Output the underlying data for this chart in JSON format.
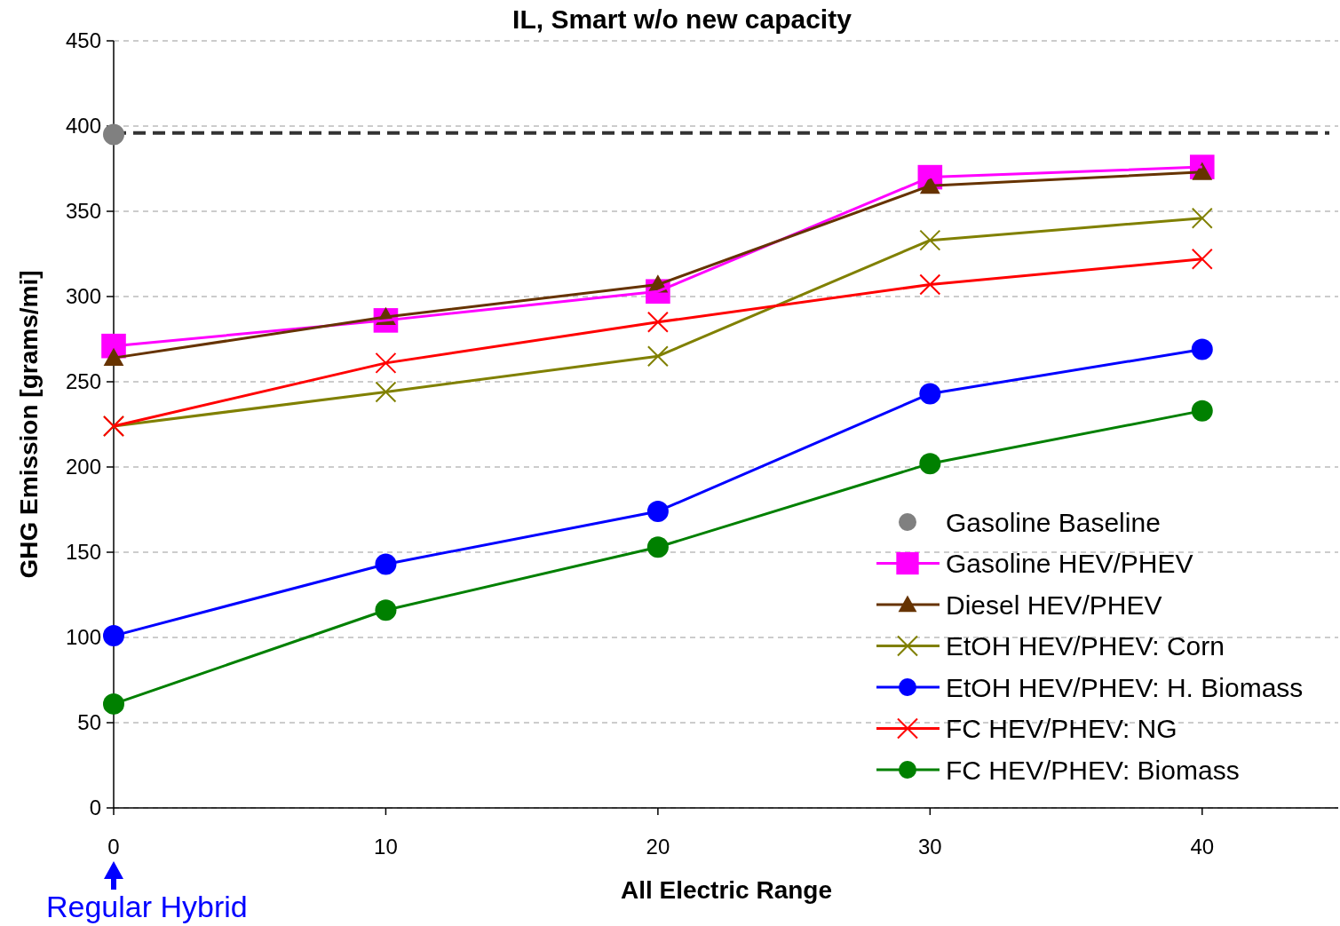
{
  "chart_data": {
    "type": "line",
    "title": "IL, Smart w/o new capacity",
    "xlabel": "All Electric Range",
    "ylabel": "GHG Emission [grams/mi]",
    "xlim": [
      0,
      45
    ],
    "xticks": [
      0,
      10,
      20,
      30,
      40
    ],
    "ylim": [
      0,
      450
    ],
    "yticks": [
      0,
      50,
      100,
      150,
      200,
      250,
      300,
      350,
      400,
      450
    ],
    "grid": "y",
    "legend": "bottom right",
    "annotations": [
      "Regular Hybrid"
    ],
    "ref_lines": [
      {
        "axis": "y",
        "value": 396,
        "color": "#333333",
        "line_style": "dashed"
      }
    ],
    "series": [
      {
        "name": "Gasoline Baseline",
        "type": "scatter",
        "marker": "circle",
        "color": "#808080",
        "x": [
          0
        ],
        "values": [
          395
        ]
      },
      {
        "name": "Gasoline HEV/PHEV",
        "marker": "square",
        "color": "#ff00ff",
        "x": [
          0,
          10,
          20,
          30,
          40
        ],
        "values": [
          271,
          286,
          303,
          370,
          376
        ]
      },
      {
        "name": "Diesel HEV/PHEV",
        "marker": "triangle",
        "color": "#663300",
        "x": [
          0,
          10,
          20,
          30,
          40
        ],
        "values": [
          264,
          288,
          307,
          365,
          373
        ]
      },
      {
        "name": "EtOH HEV/PHEV: Corn",
        "marker": "cross",
        "color": "#808000",
        "x": [
          0,
          10,
          20,
          30,
          40
        ],
        "values": [
          224,
          244,
          265,
          333,
          346
        ]
      },
      {
        "name": "EtOH HEV/PHEV: H. Biomass",
        "marker": "circle",
        "color": "#0000ff",
        "x": [
          0,
          10,
          20,
          30,
          40
        ],
        "values": [
          101,
          143,
          174,
          243,
          269
        ]
      },
      {
        "name": "FC HEV/PHEV: NG",
        "marker": "cross",
        "color": "#ff0000",
        "x": [
          0,
          10,
          20,
          30,
          40
        ],
        "values": [
          224,
          261,
          285,
          307,
          322
        ]
      },
      {
        "name": "FC HEV/PHEV: Biomass",
        "marker": "circle",
        "color": "#008000",
        "x": [
          0,
          10,
          20,
          30,
          40
        ],
        "values": [
          61,
          116,
          153,
          202,
          233
        ]
      }
    ]
  }
}
